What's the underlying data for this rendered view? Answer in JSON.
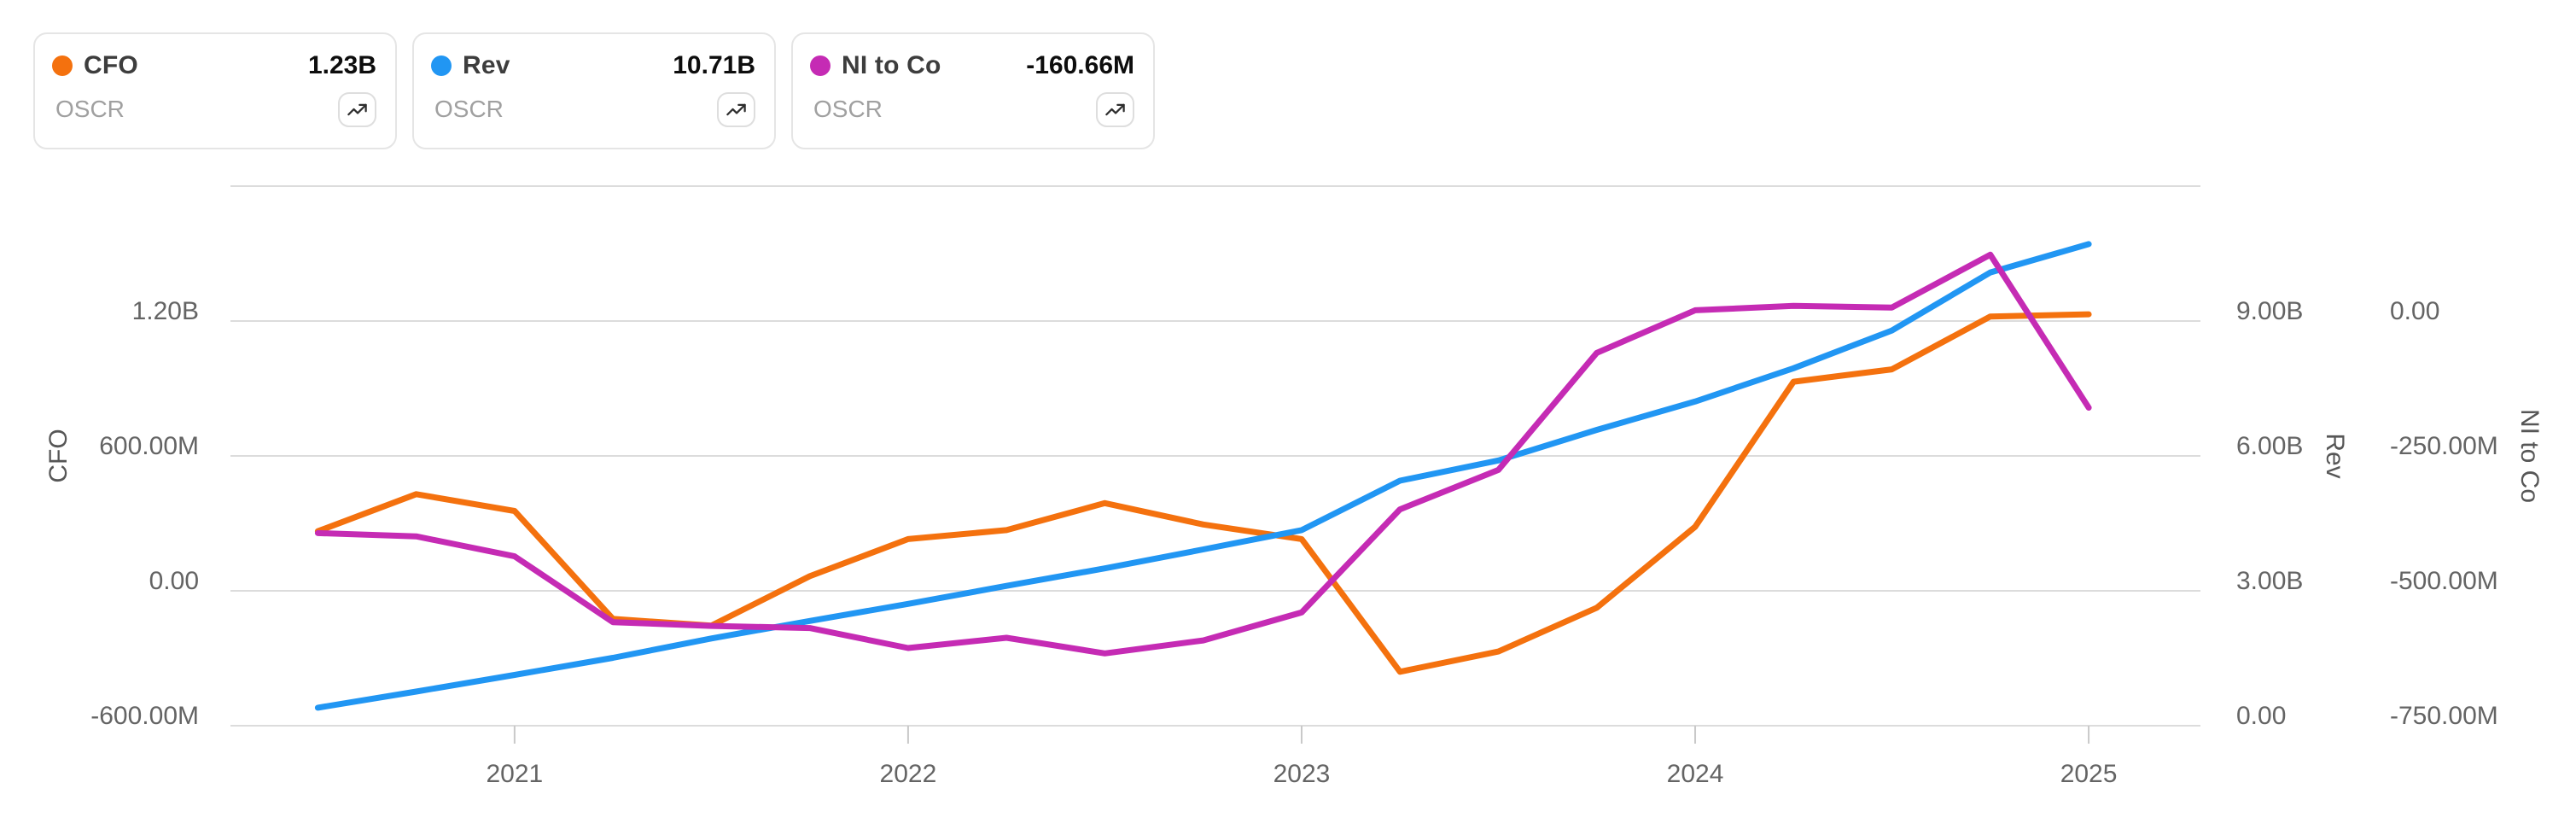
{
  "legend": {
    "cards": [
      {
        "label": "CFO",
        "value": "1.23B",
        "ticker": "OSCR",
        "color": "#f4710e"
      },
      {
        "label": "Rev",
        "value": "10.71B",
        "ticker": "OSCR",
        "color": "#2196f3"
      },
      {
        "label": "NI to Co",
        "value": "-160.66M",
        "ticker": "OSCR",
        "color": "#c52bb4"
      }
    ]
  },
  "chart_data": {
    "type": "line",
    "title": "",
    "x": [
      2020.5,
      2020.75,
      2021,
      2021.25,
      2021.5,
      2021.75,
      2022,
      2022.25,
      2022.5,
      2022.75,
      2023,
      2023.25,
      2023.5,
      2023.75,
      2024,
      2024.25,
      2024.5,
      2024.75,
      2025
    ],
    "x_domain": [
      2020.278,
      2025.284
    ],
    "x_ticks": [
      {
        "value": 2021,
        "label": "2021"
      },
      {
        "value": 2022,
        "label": "2022"
      },
      {
        "value": 2023,
        "label": "2023"
      },
      {
        "value": 2024,
        "label": "2024"
      },
      {
        "value": 2025,
        "label": "2025"
      }
    ],
    "axes": {
      "cfo": {
        "title": "CFO",
        "position": "left",
        "min": -600,
        "max": 1800,
        "unit": "M",
        "gridlines": [
          1800,
          1200,
          600,
          0,
          -600
        ],
        "ticks": [
          {
            "value": 1200,
            "label": "1.20B"
          },
          {
            "value": 600,
            "label": "600.00M"
          },
          {
            "value": 0,
            "label": "0.00"
          },
          {
            "value": -600,
            "label": "-600.00M"
          }
        ]
      },
      "rev": {
        "title": "Rev",
        "position": "right-inner",
        "min": 0,
        "max": 12000,
        "unit": "M",
        "ticks": [
          {
            "value": 9000,
            "label": "9.00B"
          },
          {
            "value": 6000,
            "label": "6.00B"
          },
          {
            "value": 3000,
            "label": "3.00B"
          },
          {
            "value": 0,
            "label": "0.00"
          }
        ]
      },
      "ni": {
        "title": "NI to Co",
        "position": "right-outer",
        "min": -750,
        "max": 250,
        "unit": "M",
        "ticks": [
          {
            "value": 0,
            "label": "0.00"
          },
          {
            "value": -250,
            "label": "-250.00M"
          },
          {
            "value": -500,
            "label": "-500.00M"
          },
          {
            "value": -750,
            "label": "-750.00M"
          }
        ]
      }
    },
    "series": [
      {
        "name": "CFO",
        "ticker": "OSCR",
        "axis": "cfo",
        "color": "#f4710e",
        "unit": "M",
        "values": [
          265,
          430,
          355,
          -125,
          -155,
          65,
          230,
          270,
          390,
          295,
          230,
          -360,
          -270,
          -75,
          285,
          930,
          985,
          1220,
          1230
        ]
      },
      {
        "name": "Rev",
        "ticker": "OSCR",
        "axis": "rev",
        "color": "#2196f3",
        "unit": "M",
        "values": [
          400,
          760,
          1130,
          1510,
          1940,
          2330,
          2710,
          3110,
          3500,
          3920,
          4350,
          5450,
          5900,
          6580,
          7210,
          7950,
          8790,
          10080,
          10710
        ]
      },
      {
        "name": "NI to Co",
        "ticker": "OSCR",
        "axis": "ni",
        "color": "#c52bb4",
        "unit": "M",
        "values": [
          -393,
          -399,
          -436,
          -558,
          -565,
          -569,
          -606,
          -587,
          -616,
          -592,
          -540,
          -349,
          -276,
          -59,
          20,
          28,
          25,
          123,
          -160.66
        ]
      }
    ],
    "draw_order": [
      0,
      1,
      2
    ],
    "legend_position": "top-left-cards",
    "grid_on": true,
    "grid_color": "#dcdcdc",
    "tick_mark_color": "#c9c9c9",
    "label_color": "#646464",
    "axis_title_color": "#565656",
    "line_width": 7
  }
}
